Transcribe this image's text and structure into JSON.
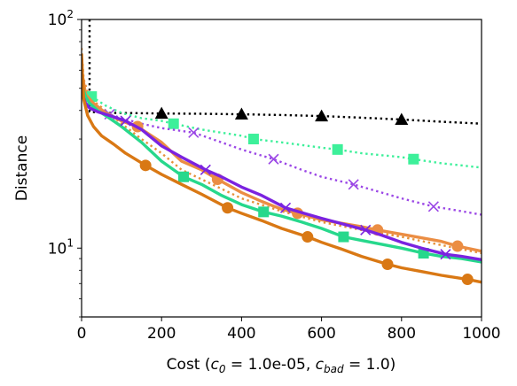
{
  "chart_data": {
    "type": "line",
    "xlabel": "Cost ($c_0$ = 1.0e-05, $c_{bad}$ = 1.0)",
    "xlabel_parts": {
      "prefix": "Cost (",
      "c0_base": "c",
      "c0_sub": "0",
      "c0_rest": " = 1.0e-05, ",
      "cbad_base": "c",
      "cbad_sub": "bad",
      "suffix": " = 1.0)"
    },
    "ylabel": "Distance",
    "xlim": [
      0,
      1000
    ],
    "ylim": [
      5,
      100
    ],
    "yscale": "log",
    "x_ticks": [
      0,
      200,
      400,
      600,
      800,
      1000
    ],
    "x_tick_labels": [
      "0",
      "200",
      "400",
      "600",
      "800",
      "1000"
    ],
    "y_ticks": [
      {
        "value": 10,
        "base": "10",
        "exp": "1"
      },
      {
        "value": 100,
        "base": "10",
        "exp": "2"
      }
    ],
    "grid": false,
    "legend": "none",
    "series": [
      {
        "color": "#000000",
        "style": "dotted",
        "marker": "triangle",
        "x": [
          20,
          20,
          60,
          100,
          200,
          300,
          400,
          500,
          600,
          700,
          800,
          900,
          1000
        ],
        "y": [
          100,
          39.5,
          39,
          39,
          38.8,
          38.7,
          38.5,
          38.2,
          37.8,
          37.2,
          36.5,
          35.7,
          35
        ],
        "marker_x": [
          200,
          400,
          600,
          800
        ]
      },
      {
        "color": "#e69138",
        "style": "dotted",
        "marker": "none",
        "x": [
          0,
          5,
          15,
          30,
          60,
          100,
          150,
          200,
          250,
          300,
          400,
          500,
          600,
          700,
          800,
          900,
          1000
        ],
        "y": [
          75,
          55,
          48,
          44,
          40,
          35,
          30,
          26,
          22,
          20,
          16.5,
          14.5,
          13,
          12,
          11.2,
          10.3,
          9.5
        ]
      },
      {
        "color": "#3df09a",
        "style": "dotted",
        "marker": "square",
        "x": [
          0,
          10,
          25,
          60,
          100,
          150,
          200,
          230,
          300,
          400,
          430,
          500,
          600,
          640,
          700,
          800,
          830,
          900,
          1000
        ],
        "y": [
          55,
          48,
          46,
          42,
          39,
          37,
          36,
          35,
          33,
          31,
          30,
          29,
          27.5,
          27,
          26,
          25,
          24.5,
          23.5,
          22.5
        ],
        "marker_x": [
          25,
          230,
          430,
          640,
          830
        ]
      },
      {
        "color": "#9b47e6",
        "style": "dotted",
        "marker": "x",
        "x": [
          0,
          10,
          30,
          70,
          100,
          150,
          200,
          280,
          350,
          400,
          480,
          550,
          600,
          680,
          750,
          800,
          880,
          950,
          1000
        ],
        "y": [
          50,
          44,
          41,
          38.5,
          37,
          35,
          33.5,
          32,
          29,
          27,
          24.5,
          22,
          20.5,
          19,
          17.5,
          16.5,
          15.2,
          14.5,
          14
        ],
        "marker_x": [
          70,
          280,
          480,
          680,
          880
        ]
      },
      {
        "color": "#eb8d43",
        "style": "solid",
        "marker": "circle",
        "x": [
          0,
          10,
          30,
          60,
          100,
          140,
          200,
          250,
          300,
          340,
          400,
          450,
          500,
          540,
          600,
          700,
          740,
          800,
          900,
          940,
          1000
        ],
        "y": [
          60,
          47,
          43,
          39,
          36,
          34,
          29,
          24,
          22,
          20,
          17.5,
          16,
          14.8,
          14.2,
          13.3,
          12.4,
          12,
          11.5,
          10.7,
          10.2,
          9.7
        ],
        "marker_x": [
          140,
          340,
          540,
          740,
          940
        ]
      },
      {
        "color": "#27d88c",
        "style": "solid",
        "marker": "square",
        "x": [
          0,
          10,
          20,
          40,
          60,
          100,
          150,
          200,
          255,
          300,
          350,
          400,
          455,
          500,
          550,
          600,
          655,
          700,
          750,
          800,
          855,
          900,
          950,
          1000
        ],
        "y": [
          52,
          46,
          43,
          40,
          38,
          34,
          29,
          24,
          20.5,
          19,
          17,
          15.5,
          14.4,
          13.8,
          13,
          12.2,
          11.2,
          10.8,
          10.4,
          10,
          9.5,
          9.2,
          9,
          8.7
        ],
        "marker_x": [
          255,
          455,
          655,
          855
        ]
      },
      {
        "color": "#7b22e0",
        "style": "solid",
        "marker": "x",
        "x": [
          0,
          10,
          20,
          40,
          70,
          110,
          150,
          200,
          250,
          310,
          350,
          400,
          450,
          510,
          550,
          600,
          650,
          710,
          750,
          800,
          850,
          910,
          950,
          1000
        ],
        "y": [
          48,
          43,
          41,
          39.5,
          38,
          36,
          33,
          28,
          25,
          22,
          20.5,
          18.5,
          17,
          15,
          14.3,
          13.5,
          12.8,
          12,
          11.4,
          10.6,
          10,
          9.4,
          9.2,
          8.9
        ],
        "marker_x": [
          110,
          310,
          510,
          710,
          910
        ]
      },
      {
        "color": "#d97814",
        "style": "solid",
        "marker": "circle",
        "x": [
          0,
          5,
          15,
          30,
          50,
          80,
          110,
          160,
          200,
          250,
          300,
          365,
          400,
          450,
          500,
          565,
          600,
          650,
          700,
          765,
          800,
          850,
          900,
          965,
          1000
        ],
        "y": [
          70,
          45,
          38,
          34,
          31,
          28.5,
          26,
          23,
          21,
          19,
          17.2,
          15,
          14.2,
          13.2,
          12.2,
          11.2,
          10.6,
          9.9,
          9.2,
          8.5,
          8.2,
          7.9,
          7.6,
          7.3,
          7.1
        ],
        "marker_x": [
          160,
          365,
          565,
          765,
          965
        ]
      }
    ]
  }
}
